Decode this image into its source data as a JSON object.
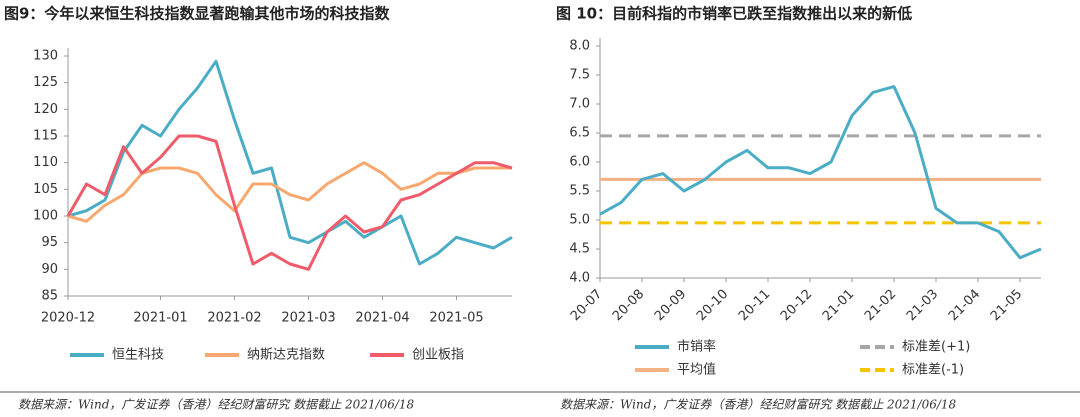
{
  "chart_data": [
    {
      "type": "line",
      "title": "图9：今年以来恒生科技指数显著跑输其他市场的科技指数",
      "categories": [
        "2020-12",
        null,
        null,
        null,
        null,
        "2021-01",
        null,
        null,
        null,
        "2021-02",
        null,
        null,
        null,
        "2021-03",
        null,
        null,
        null,
        "2021-04",
        null,
        null,
        null,
        "2021-05",
        null,
        null,
        null
      ],
      "series": [
        {
          "name": "恒生科技",
          "color": "#4bacc6",
          "values": [
            100,
            101,
            103,
            112,
            117,
            115,
            120,
            124,
            129,
            118,
            108,
            109,
            96,
            95,
            97,
            99,
            96,
            98,
            100,
            91,
            93,
            96,
            95,
            94,
            96
          ]
        },
        {
          "name": "纳斯达克指数",
          "color": "#f6a86f",
          "values": [
            100,
            99,
            102,
            104,
            108,
            109,
            109,
            108,
            104,
            101,
            106,
            106,
            104,
            103,
            106,
            108,
            110,
            108,
            105,
            106,
            108,
            108,
            109,
            109,
            109
          ]
        },
        {
          "name": "创业板指",
          "color": "#ef5b6a",
          "values": [
            100,
            106,
            104,
            113,
            108,
            111,
            115,
            115,
            114,
            102,
            91,
            93,
            91,
            90,
            97,
            100,
            97,
            98,
            103,
            104,
            106,
            108,
            110,
            110,
            109
          ]
        }
      ],
      "ylim": [
        85,
        130
      ],
      "yticks": [
        85,
        90,
        95,
        100,
        105,
        110,
        115,
        120,
        125,
        130
      ],
      "source": "数据来源：Wind，广发证券（香港）经纪财富研究  数据截止 2021/06/18"
    },
    {
      "type": "line",
      "title": "图 10：目前科指的市销率已跌至指数推出以来的新低",
      "categories": [
        "20-07",
        null,
        "20-08",
        null,
        "20-09",
        null,
        "20-10",
        null,
        "20-11",
        null,
        "20-12",
        null,
        "21-01",
        null,
        "21-02",
        null,
        "21-03",
        null,
        "21-04",
        null,
        "21-05",
        null
      ],
      "series": [
        {
          "name": "市销率",
          "color": "#4bacc6",
          "values": [
            5.1,
            5.3,
            5.7,
            5.8,
            5.5,
            5.7,
            6.0,
            6.2,
            5.9,
            5.9,
            5.8,
            6.0,
            6.8,
            7.2,
            7.3,
            6.5,
            5.2,
            4.95,
            4.95,
            4.8,
            4.35,
            4.5
          ]
        }
      ],
      "reference_lines": [
        {
          "name": "标准差(+1)",
          "color": "#a6a6a6",
          "value": 6.45,
          "dashed": true
        },
        {
          "name": "平均值",
          "color": "#f4b183",
          "value": 5.7,
          "dashed": false
        },
        {
          "name": "标准差(-1)",
          "color": "#f5c400",
          "value": 4.95,
          "dashed": true
        }
      ],
      "ylim": [
        4,
        8
      ],
      "yticks": [
        {
          "value": 4,
          "label": "4.0"
        },
        4.5,
        {
          "value": 5,
          "label": "5.0"
        },
        5.5,
        {
          "value": 6,
          "label": "6.0"
        },
        6.5,
        {
          "value": 7,
          "label": "7.0"
        },
        7.5,
        {
          "value": 8,
          "label": "8.0"
        }
      ],
      "source": "数据来源：Wind，广发证券（香港）经纪财富研究  数据截止 2021/06/18"
    }
  ]
}
